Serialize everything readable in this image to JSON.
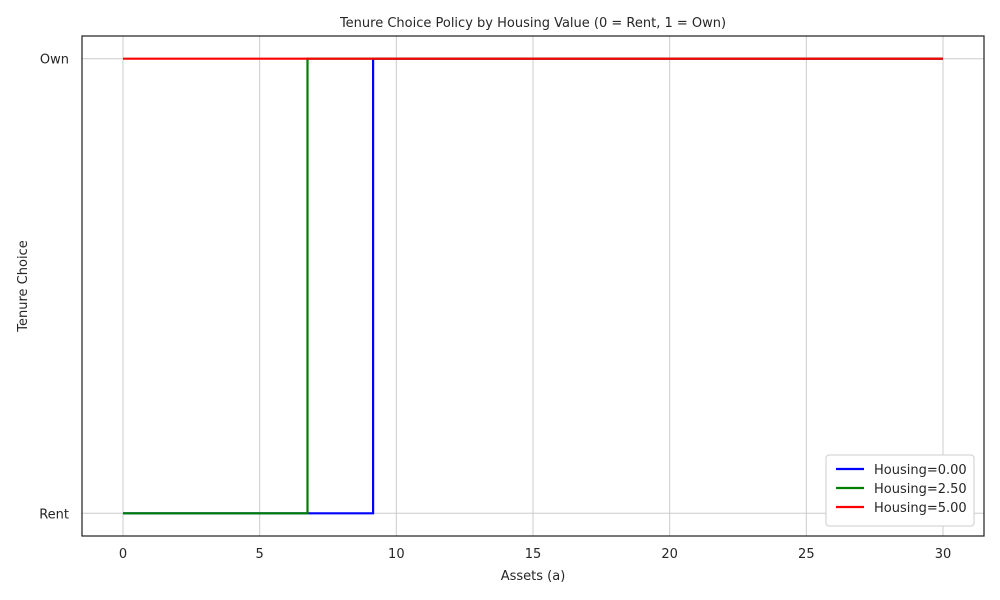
{
  "chart_data": {
    "type": "line",
    "title": "Tenure Choice Policy by Housing Value (0 = Rent, 1 = Own)",
    "xlabel": "Assets (a)",
    "ylabel": "Tenure Choice",
    "xlim": [
      -1.5,
      31.5
    ],
    "ylim": [
      -0.05,
      1.05
    ],
    "xticks": [
      0,
      5,
      10,
      15,
      20,
      25,
      30
    ],
    "xtick_labels": [
      "0",
      "5",
      "10",
      "15",
      "20",
      "25",
      "30"
    ],
    "yticks": [
      0,
      1
    ],
    "ytick_labels": [
      "Rent",
      "Own"
    ],
    "grid": true,
    "legend_position": "bottom-right",
    "series": [
      {
        "name": "Housing=0.00",
        "color": "#0000ff",
        "x": [
          0,
          9.15,
          9.15,
          30
        ],
        "y": [
          0,
          0,
          1,
          1
        ]
      },
      {
        "name": "Housing=2.50",
        "color": "#008000",
        "x": [
          0,
          6.75,
          6.75,
          30
        ],
        "y": [
          0,
          0,
          1,
          1
        ]
      },
      {
        "name": "Housing=5.00",
        "color": "#ff0000",
        "x": [
          0,
          30
        ],
        "y": [
          1,
          1
        ]
      }
    ]
  }
}
